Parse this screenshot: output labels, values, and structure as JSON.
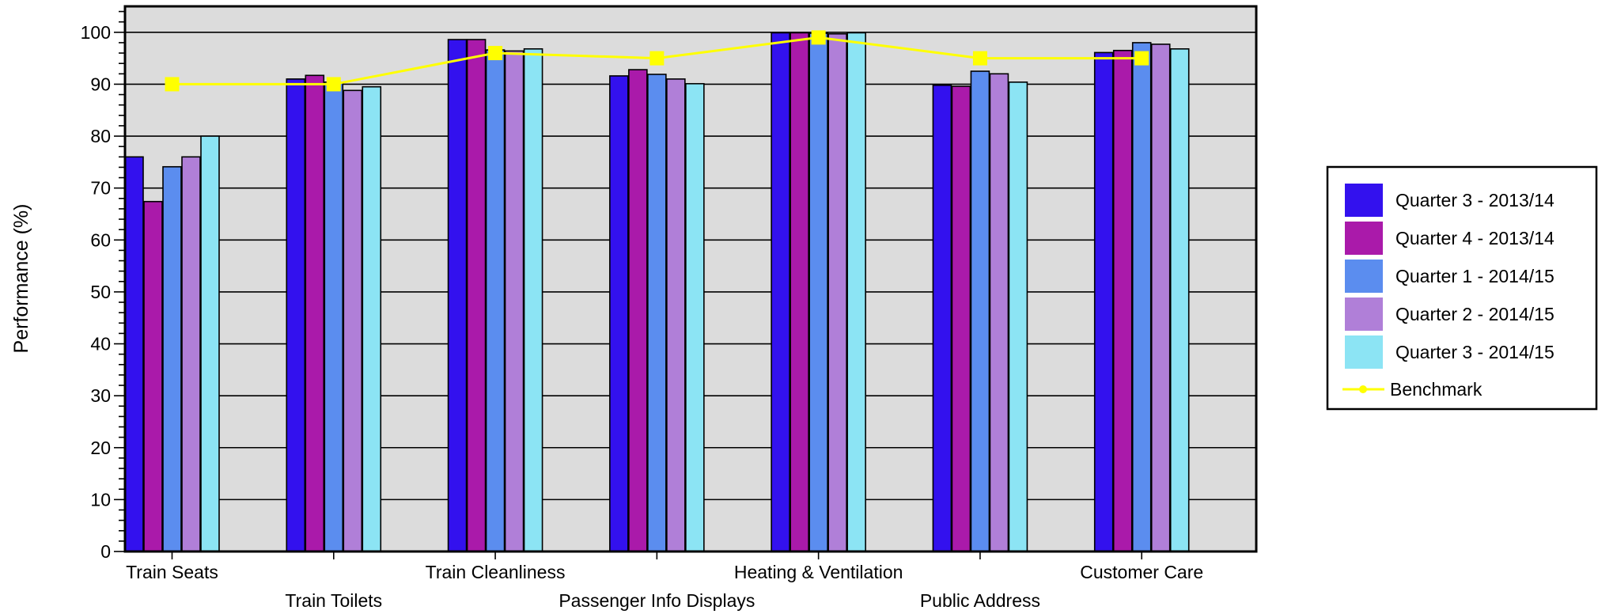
{
  "chart_data": {
    "type": "bar",
    "title": "",
    "xlabel": "",
    "ylabel": "Performance (%)",
    "ylim": [
      0,
      105
    ],
    "yticks": [
      0,
      10,
      20,
      30,
      40,
      50,
      60,
      70,
      80,
      90,
      100
    ],
    "grid": true,
    "legend_position": "right",
    "categories": [
      "Train Seats",
      "Train Toilets",
      "Train Cleanliness",
      "Passenger Info Displays",
      "Heating & Ventilation",
      "Public Address",
      "Customer Care"
    ],
    "series": [
      {
        "name": "Quarter 3 - 2013/14",
        "color": "#3311ee",
        "values": [
          76.0,
          91.0,
          98.6,
          91.6,
          99.9,
          89.8,
          96.1
        ]
      },
      {
        "name": "Quarter 4 - 2013/14",
        "color": "#aa1aaa",
        "values": [
          67.4,
          91.7,
          98.6,
          92.8,
          99.9,
          89.6,
          96.5
        ]
      },
      {
        "name": "Quarter 1 - 2014/15",
        "color": "#5b8def",
        "values": [
          74.1,
          90.4,
          96.6,
          91.9,
          99.8,
          92.5,
          98.0
        ]
      },
      {
        "name": "Quarter 2 - 2014/15",
        "color": "#b07fd8",
        "values": [
          76.0,
          88.8,
          96.4,
          91.0,
          99.7,
          92.0,
          97.7
        ]
      },
      {
        "name": "Quarter 3 - 2014/15",
        "color": "#8ce4f4",
        "values": [
          80.0,
          89.5,
          96.8,
          90.1,
          99.9,
          90.4,
          96.8
        ]
      }
    ],
    "line_series": {
      "name": "Benchmark",
      "color": "#ffff00",
      "values": [
        90,
        90,
        96,
        95,
        99,
        95,
        95
      ]
    }
  }
}
